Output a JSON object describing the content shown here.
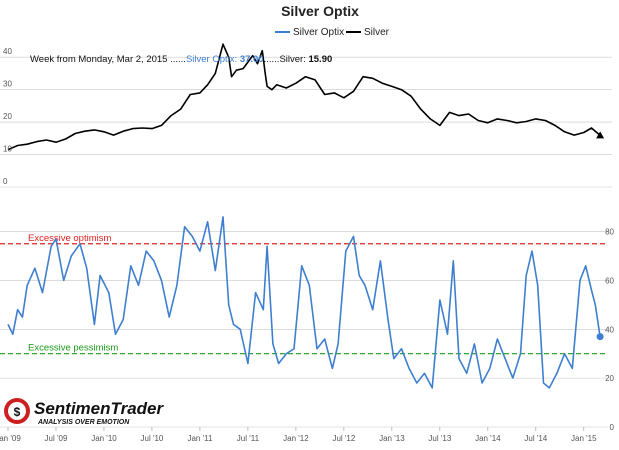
{
  "chart_data": {
    "type": "line",
    "title": "Silver Optix",
    "legend": [
      "Silver Optix",
      "Silver"
    ],
    "legend_placement": "top-center",
    "colors": {
      "optix": "#3f7fcf",
      "silver": "#000000",
      "optimism": "#e02020",
      "pessimism": "#1a9a1a",
      "grid": "#c8c8c8"
    },
    "info": {
      "week_label": "Week from Monday, Mar 2, 2015",
      "sep1": " ......",
      "optix_label": "Silver Optix: ",
      "optix_value": "37.00",
      "sep2": "......",
      "silver_label": "Silver: ",
      "silver_value": "15.90"
    },
    "x_ticks": [
      "Jan '09",
      "Jul '09",
      "Jan '10",
      "Jul '10",
      "Jan '11",
      "Jul '11",
      "Jan '12",
      "Jul '12",
      "Jan '13",
      "Jul '13",
      "Jan '14",
      "Jul '14",
      "Jan '15"
    ],
    "x_range": [
      2009.0,
      2015.2
    ],
    "top_panel": {
      "y_axis": "left",
      "ylim": [
        0,
        45
      ],
      "y_ticks": [
        0,
        10,
        20,
        30,
        40
      ],
      "series_name": "Silver",
      "x": [
        2009.0,
        2009.1,
        2009.2,
        2009.3,
        2009.4,
        2009.5,
        2009.6,
        2009.7,
        2009.8,
        2009.9,
        2010.0,
        2010.1,
        2010.2,
        2010.3,
        2010.4,
        2010.5,
        2010.6,
        2010.7,
        2010.8,
        2010.9,
        2011.0,
        2011.08,
        2011.16,
        2011.24,
        2011.3,
        2011.33,
        2011.38,
        2011.45,
        2011.55,
        2011.6,
        2011.65,
        2011.68,
        2011.7,
        2011.75,
        2011.8,
        2011.9,
        2012.0,
        2012.1,
        2012.2,
        2012.3,
        2012.4,
        2012.5,
        2012.6,
        2012.7,
        2012.8,
        2012.9,
        2013.0,
        2013.1,
        2013.2,
        2013.3,
        2013.4,
        2013.5,
        2013.6,
        2013.7,
        2013.8,
        2013.9,
        2014.0,
        2014.1,
        2014.2,
        2014.3,
        2014.4,
        2014.5,
        2014.6,
        2014.7,
        2014.8,
        2014.9,
        2015.0,
        2015.08,
        2015.17
      ],
      "values": [
        11.5,
        12.8,
        13.2,
        14.0,
        14.5,
        13.8,
        14.8,
        16.5,
        17.2,
        17.6,
        17.0,
        16.0,
        17.2,
        18.0,
        18.2,
        18.0,
        19.0,
        22.0,
        24.0,
        28.5,
        29.0,
        31.5,
        35.0,
        44.0,
        40.0,
        34.0,
        36.0,
        36.5,
        40.5,
        38.0,
        42.0,
        35.0,
        31.0,
        30.0,
        31.5,
        30.5,
        32.0,
        34.0,
        33.0,
        28.5,
        29.0,
        27.5,
        29.5,
        34.0,
        33.5,
        32.0,
        31.0,
        30.0,
        28.0,
        24.0,
        21.0,
        19.0,
        23.0,
        22.0,
        22.5,
        20.5,
        19.8,
        21.0,
        20.5,
        19.8,
        20.2,
        21.0,
        20.5,
        19.0,
        17.0,
        16.0,
        16.8,
        18.2,
        15.9
      ]
    },
    "bottom_panel": {
      "y_axis": "right",
      "ylim": [
        0,
        88
      ],
      "y_ticks": [
        0,
        20,
        40,
        60,
        80
      ],
      "series_name": "Silver Optix",
      "thresholds": [
        {
          "label": "Excessive optimism",
          "value": 75
        },
        {
          "label": "Excessive pessimism",
          "value": 30
        }
      ],
      "x": [
        2009.0,
        2009.05,
        2009.1,
        2009.15,
        2009.2,
        2009.28,
        2009.36,
        2009.45,
        2009.5,
        2009.58,
        2009.66,
        2009.75,
        2009.82,
        2009.9,
        2009.96,
        2010.05,
        2010.12,
        2010.2,
        2010.28,
        2010.36,
        2010.44,
        2010.52,
        2010.6,
        2010.68,
        2010.76,
        2010.84,
        2010.92,
        2011.0,
        2011.08,
        2011.16,
        2011.24,
        2011.3,
        2011.35,
        2011.42,
        2011.5,
        2011.58,
        2011.66,
        2011.7,
        2011.76,
        2011.82,
        2011.9,
        2011.98,
        2012.06,
        2012.14,
        2012.22,
        2012.3,
        2012.38,
        2012.44,
        2012.52,
        2012.6,
        2012.66,
        2012.72,
        2012.8,
        2012.88,
        2012.96,
        2013.02,
        2013.1,
        2013.18,
        2013.26,
        2013.34,
        2013.42,
        2013.5,
        2013.58,
        2013.64,
        2013.7,
        2013.78,
        2013.86,
        2013.94,
        2014.02,
        2014.1,
        2014.18,
        2014.26,
        2014.34,
        2014.4,
        2014.46,
        2014.52,
        2014.58,
        2014.64,
        2014.72,
        2014.8,
        2014.88,
        2014.96,
        2015.02,
        2015.08,
        2015.12,
        2015.17
      ],
      "values": [
        42,
        38,
        48,
        45,
        58,
        65,
        55,
        74,
        77,
        60,
        70,
        75,
        65,
        42,
        62,
        55,
        38,
        44,
        66,
        58,
        72,
        68,
        60,
        45,
        58,
        82,
        78,
        72,
        84,
        64,
        86,
        50,
        42,
        40,
        26,
        55,
        48,
        74,
        34,
        26,
        30,
        32,
        66,
        58,
        32,
        36,
        24,
        34,
        72,
        78,
        62,
        58,
        48,
        68,
        44,
        28,
        32,
        24,
        18,
        22,
        16,
        52,
        38,
        68,
        28,
        22,
        34,
        18,
        24,
        36,
        28,
        20,
        30,
        62,
        72,
        58,
        18,
        16,
        22,
        30,
        24,
        60,
        66,
        56,
        50,
        37
      ]
    }
  },
  "branding": {
    "name": "SentimenTrader",
    "tagline": "ANALYSIS OVER EMOTION"
  }
}
